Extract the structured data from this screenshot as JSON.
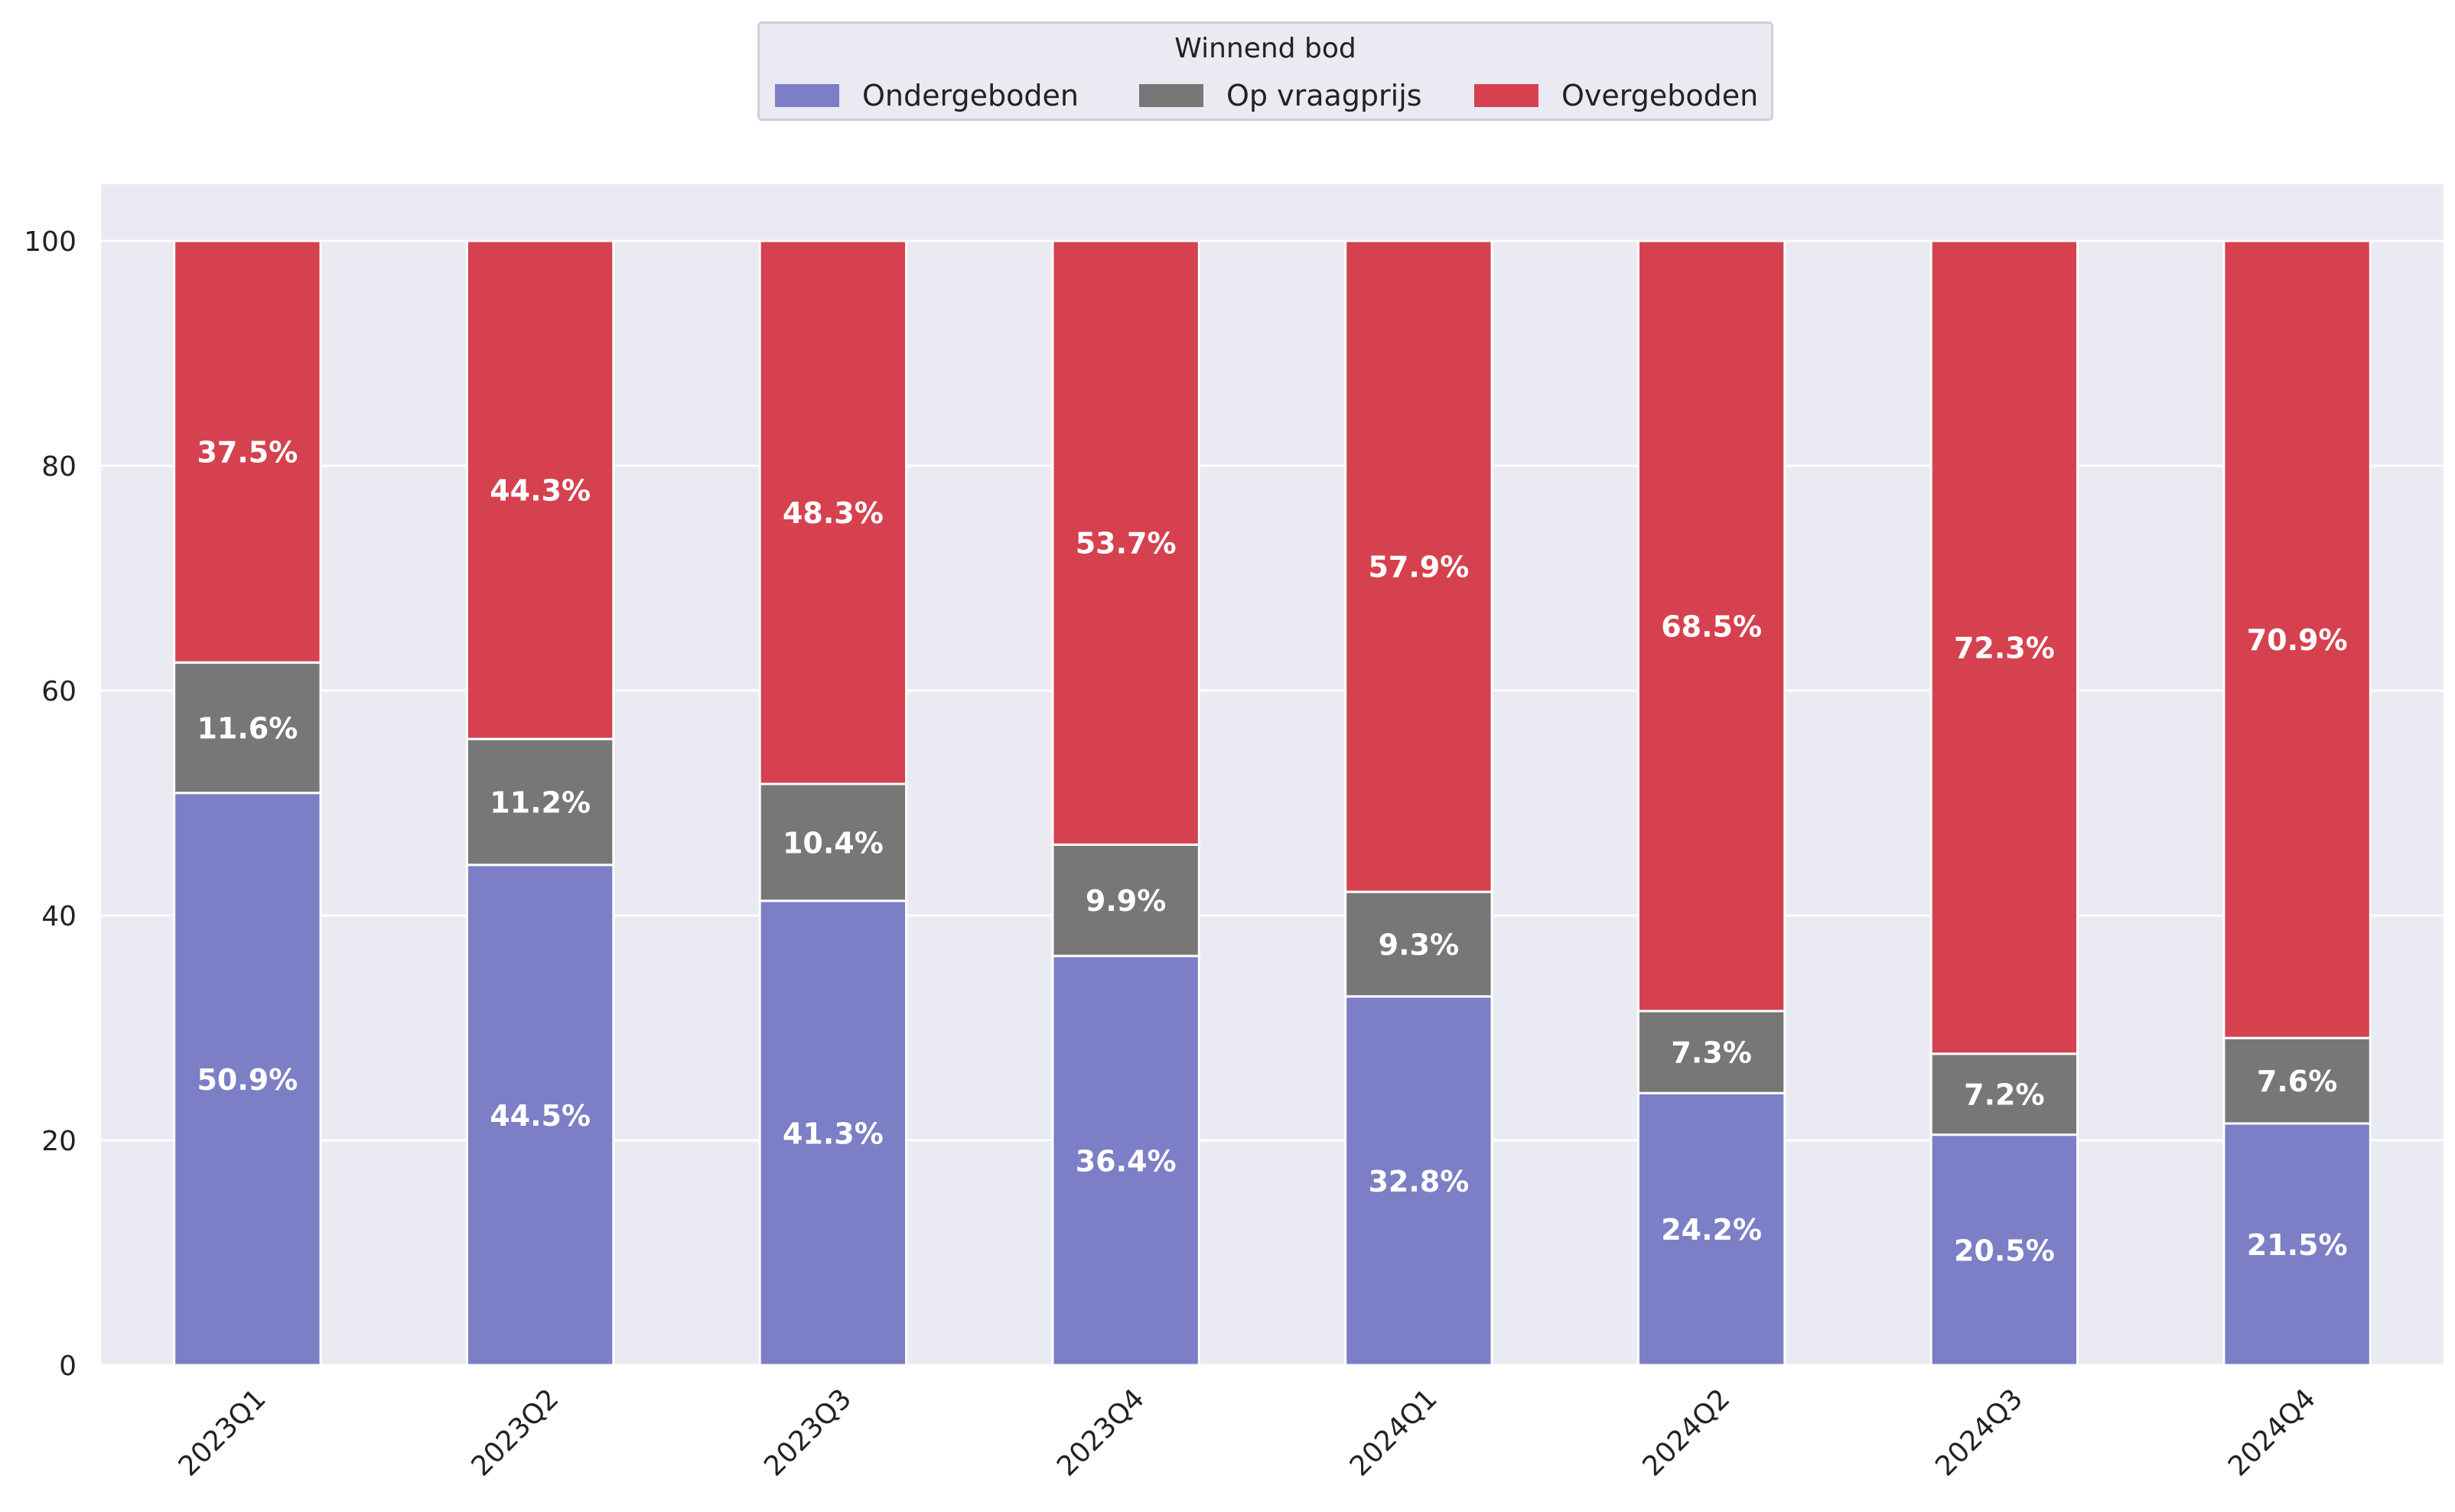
{
  "chart_data": {
    "type": "bar",
    "stacked": true,
    "categories": [
      "2023Q1",
      "2023Q2",
      "2023Q3",
      "2023Q4",
      "2024Q1",
      "2024Q2",
      "2024Q3",
      "2024Q4"
    ],
    "series": [
      {
        "name": "Ondergeboden",
        "color": "#7c7ec6",
        "values": [
          50.9,
          44.5,
          41.3,
          36.4,
          32.8,
          24.2,
          20.5,
          21.5
        ],
        "labels": [
          "50.9%",
          "44.5%",
          "41.3%",
          "36.4%",
          "32.8%",
          "24.2%",
          "20.5%",
          "21.5%"
        ]
      },
      {
        "name": "Op vraagprijs",
        "color": "#777777",
        "values": [
          11.6,
          11.2,
          10.4,
          9.9,
          9.3,
          7.3,
          7.2,
          7.6
        ],
        "labels": [
          "11.6%",
          "11.2%",
          "10.4%",
          "9.9%",
          "9.3%",
          "7.3%",
          "7.2%",
          "7.6%"
        ]
      },
      {
        "name": "Overgeboden",
        "color": "#d6414f",
        "values": [
          37.5,
          44.3,
          48.3,
          53.7,
          57.9,
          68.5,
          72.3,
          70.9
        ],
        "labels": [
          "37.5%",
          "44.3%",
          "48.3%",
          "53.7%",
          "57.9%",
          "68.5%",
          "72.3%",
          "70.9%"
        ]
      }
    ],
    "legend_title": "Winnend bod",
    "legend_position": "top-center",
    "yticks": [
      "0",
      "20",
      "40",
      "60",
      "80",
      "100"
    ],
    "ylim": [
      0,
      105
    ],
    "grid": true,
    "xlabel": "",
    "ylabel": "",
    "title": ""
  },
  "colors": {
    "plot_background": "#eaeaf2",
    "grid": "#ffffff",
    "label_text": "#ffffff"
  }
}
